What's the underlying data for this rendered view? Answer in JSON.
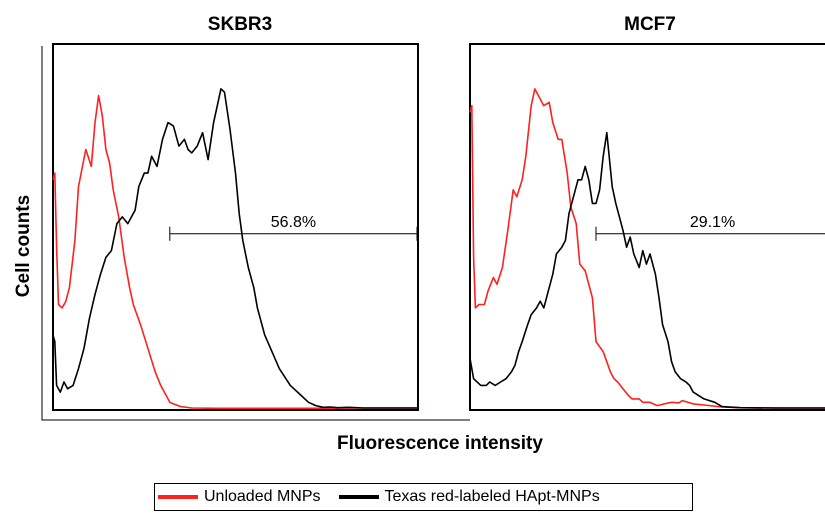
{
  "chart_data": [
    {
      "type": "line",
      "title": "SKBR3",
      "xlabel": "Fluorescence intensity",
      "ylabel": "Cell counts",
      "xlim": [
        0,
        100
      ],
      "ylim": [
        0,
        100
      ],
      "grid": false,
      "annotation": {
        "text": "56.8%",
        "x_start": 32,
        "x_end": 100,
        "y": 52
      },
      "series": [
        {
          "name": "Unloaded MNPs",
          "color": "#ff2020",
          "x": [
            0,
            0.5,
            1,
            1.5,
            2.5,
            3.5,
            4.5,
            6,
            7,
            9,
            10.5,
            11.5,
            12.5,
            13.5,
            14.5,
            15.5,
            16.5,
            18,
            19.5,
            21,
            22,
            23,
            24,
            26,
            28,
            29.5,
            31,
            32,
            33,
            35,
            38,
            45,
            55,
            70,
            85,
            100
          ],
          "y": [
            68,
            70,
            48,
            31,
            30,
            32,
            36,
            50,
            66,
            77,
            72,
            85,
            93,
            87,
            77,
            73,
            65,
            57,
            45,
            36,
            31,
            28,
            25,
            18,
            11,
            7,
            4,
            2,
            1.5,
            0.7,
            0.3,
            0.2,
            0.2,
            0.2,
            0.3,
            0.3
          ]
        },
        {
          "name": "Texas red-labeled HApt-MNPs",
          "color": "#000000",
          "x": [
            0,
            0.5,
            1,
            2,
            3,
            4,
            5.5,
            7,
            8.5,
            10,
            11.5,
            13,
            14.5,
            16,
            17.5,
            19,
            20.5,
            22,
            22.5,
            23.5,
            25,
            26,
            27,
            28.5,
            30,
            31.5,
            33,
            34.5,
            36,
            37,
            38,
            39.5,
            41,
            42.5,
            44,
            45,
            46,
            47,
            48.5,
            50,
            51,
            52,
            53.5,
            55,
            56,
            58,
            60,
            62,
            65,
            68,
            70,
            72,
            74,
            76,
            78,
            81,
            85,
            100
          ],
          "y": [
            22,
            20,
            7,
            5,
            8,
            6,
            7,
            12,
            18,
            27,
            34,
            40,
            45,
            47,
            55,
            57,
            55,
            58,
            59,
            66,
            70,
            70,
            75,
            72,
            80,
            85,
            84,
            78,
            80,
            77,
            76,
            78,
            82,
            74,
            85,
            90,
            95,
            94,
            83,
            70,
            58,
            50,
            42,
            36,
            30,
            22,
            17,
            12,
            7,
            4,
            2,
            1,
            0.5,
            0.6,
            0.4,
            0.5,
            0.3,
            0.3
          ]
        }
      ]
    },
    {
      "type": "line",
      "title": "MCF7",
      "xlabel": "Fluorescence intensity",
      "ylabel": "Cell counts",
      "xlim": [
        0,
        100
      ],
      "ylim": [
        0,
        100
      ],
      "grid": false,
      "annotation": {
        "text": "29.1%",
        "x_start": 35,
        "x_end": 100,
        "y": 52
      },
      "series": [
        {
          "name": "Unloaded MNPs",
          "color": "#ff2020",
          "x": [
            0,
            0.5,
            1,
            1.5,
            2.5,
            4,
            5,
            6.5,
            7.5,
            9,
            10.5,
            12,
            13,
            14.5,
            15.5,
            17,
            18,
            19.5,
            20.5,
            22,
            23,
            24.5,
            25.5,
            27,
            28,
            29.5,
            30.5,
            32,
            33,
            34,
            35,
            37,
            39,
            40,
            41,
            42.5,
            44,
            45,
            46,
            47,
            48,
            50,
            52,
            54,
            56,
            58,
            59,
            62,
            65,
            70,
            75,
            85,
            100
          ],
          "y": [
            88,
            90,
            45,
            30,
            31,
            31,
            35,
            39,
            37,
            42,
            53,
            65,
            63,
            68,
            75,
            90,
            95,
            92,
            90,
            91,
            85,
            80,
            80,
            70,
            60,
            55,
            43,
            41,
            37,
            33,
            20,
            17,
            11,
            9,
            8,
            6,
            4,
            3,
            3,
            3,
            2,
            2,
            1,
            1.5,
            2,
            1.8,
            2.5,
            1.5,
            1.2,
            0.6,
            0.4,
            0.3,
            0.3
          ]
        },
        {
          "name": "Texas red-labeled HApt-MNPs",
          "color": "#000000",
          "x": [
            0,
            1,
            3,
            4.5,
            5.5,
            7,
            8.5,
            10,
            11.5,
            12.5,
            13.5,
            14.5,
            16,
            17,
            18.5,
            19.5,
            20.5,
            22,
            23,
            24,
            25.5,
            26.5,
            27.5,
            28.5,
            30,
            31,
            32,
            33,
            34,
            35,
            36,
            37,
            38,
            39.5,
            40.5,
            41.5,
            42.5,
            43.5,
            44.5,
            45.5,
            47,
            48,
            49,
            50,
            51.5,
            52.5,
            53.5,
            55,
            56,
            57,
            58.5,
            60,
            61,
            62,
            65,
            68,
            70,
            75,
            85,
            100
          ],
          "y": [
            15,
            9,
            7,
            7,
            8,
            7,
            8,
            9,
            11,
            13,
            17,
            20,
            25,
            28,
            30,
            32,
            30,
            36,
            40,
            46,
            48,
            50,
            58,
            62,
            68,
            68,
            72,
            68,
            61,
            61,
            65,
            75,
            82,
            66,
            61,
            57,
            53,
            48,
            51,
            46,
            42,
            47,
            43,
            46,
            40,
            33,
            25,
            20,
            14,
            11,
            9,
            8,
            7,
            5,
            3,
            2,
            0.7,
            0.4,
            0.3,
            0.3
          ]
        }
      ]
    }
  ],
  "legend": [
    {
      "label": "Unloaded MNPs",
      "color": "#ff2020"
    },
    {
      "label": "Texas red-labeled HApt-MNPs",
      "color": "#000000"
    }
  ]
}
